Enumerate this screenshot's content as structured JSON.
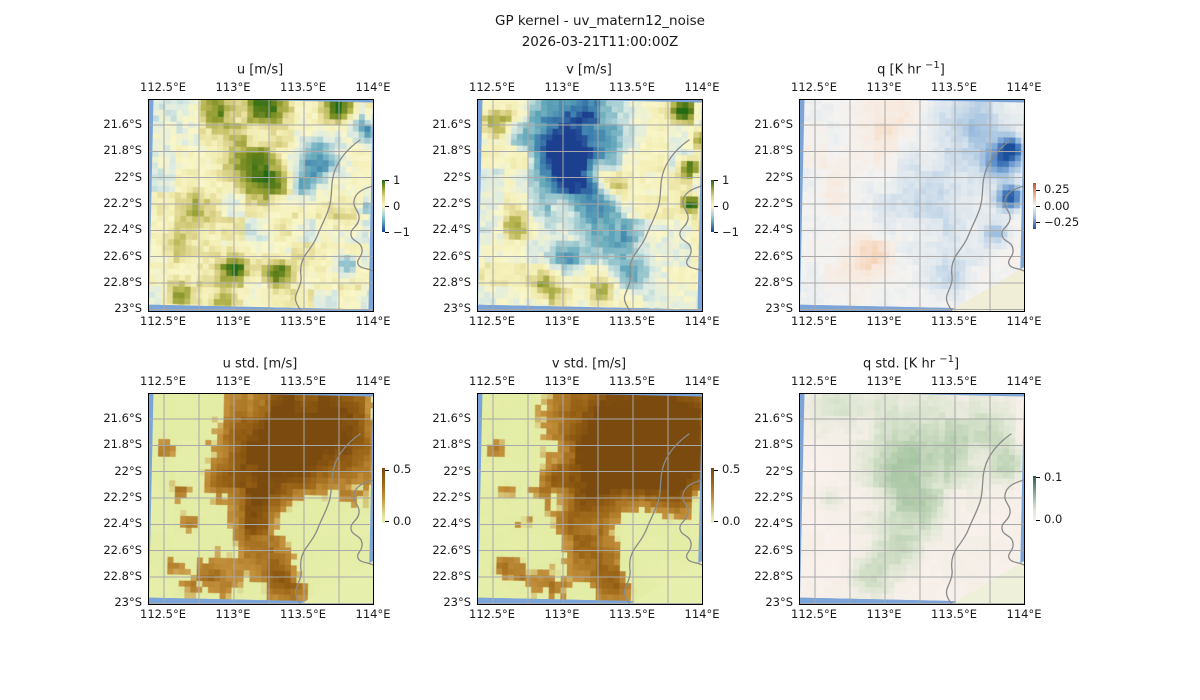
{
  "figure": {
    "title_line1": "GP kernel - uv_matern12_noise",
    "title_line2": "2026-03-21T11:00:00Z"
  },
  "colors": {
    "ocean": "#7ba4d9",
    "grid": "#a8a8a8",
    "coast": "#8a8a8a",
    "spine": "#000000",
    "text": "#1a1a1a"
  },
  "chart_data": {
    "type": "heatmap",
    "layout": "2 rows x 3 columns of lat-lon map panels, each with its own small vertical colorbar",
    "region": "Western Australia coast near Exmouth (North West Cape)",
    "lon_ticks": [
      "112.5°E",
      "113°E",
      "113.5°E",
      "114°E"
    ],
    "lat_ticks": [
      "21.6°S",
      "21.8°S",
      "22°S",
      "22.2°S",
      "22.4°S",
      "22.6°S",
      "22.8°S",
      "23°S"
    ],
    "lon_tick_values": [
      112.5,
      113.0,
      113.5,
      114.0
    ],
    "lat_tick_values": [
      -21.6,
      -21.8,
      -22.0,
      -22.2,
      -22.4,
      -22.6,
      -22.8,
      -23.0
    ],
    "grid": "on",
    "colormaps": {
      "uv": [
        [
          0.0,
          "#1c3f8f"
        ],
        [
          0.1,
          "#3d7fae"
        ],
        [
          0.22,
          "#63a8ba"
        ],
        [
          0.33,
          "#a8cfd4"
        ],
        [
          0.42,
          "#dcebe3"
        ],
        [
          0.5,
          "#f9f6c8"
        ],
        [
          0.58,
          "#f3eeb4"
        ],
        [
          0.66,
          "#ddd48b"
        ],
        [
          0.74,
          "#b8b754"
        ],
        [
          0.82,
          "#8f9a30"
        ],
        [
          0.9,
          "#5e7f1b"
        ],
        [
          1.0,
          "#1f6b14"
        ]
      ],
      "q": [
        [
          0.0,
          "#1a4f9c"
        ],
        [
          0.15,
          "#4f84c4"
        ],
        [
          0.3,
          "#9dbede"
        ],
        [
          0.42,
          "#dce6ee"
        ],
        [
          0.5,
          "#f4f3f1"
        ],
        [
          0.58,
          "#f8e9dd"
        ],
        [
          0.7,
          "#f4c9a6"
        ],
        [
          0.85,
          "#e0905c"
        ],
        [
          1.0,
          "#c2532c"
        ]
      ],
      "stduv": [
        [
          0.0,
          "#e7efac"
        ],
        [
          0.45,
          "#e3eca4"
        ],
        [
          0.49,
          "#c4913d"
        ],
        [
          0.6,
          "#b3802d"
        ],
        [
          0.72,
          "#a06a1b"
        ],
        [
          0.85,
          "#8f5a12"
        ],
        [
          1.0,
          "#7a4a0e"
        ]
      ],
      "stdq": [
        [
          0.0,
          "#fbf1ee"
        ],
        [
          0.25,
          "#f3eee6"
        ],
        [
          0.45,
          "#dde6d2"
        ],
        [
          0.65,
          "#bcd2b4"
        ],
        [
          0.85,
          "#9cbf9b"
        ],
        [
          1.0,
          "#7fa882"
        ]
      ]
    },
    "subplots": [
      {
        "name": "u",
        "title_pre": "u [m/s]",
        "title_sup": "",
        "title_post": "",
        "cmap": "uv",
        "cbar_ticks": [
          "1",
          "0",
          "−1"
        ],
        "cbar_tick_values": [
          1,
          0,
          -1
        ],
        "cbar_gradient": "linear-gradient(180deg,#1f6b14 0%,#8f9a30 15%,#ddd48b 32%,#f9f6c8 50%,#a8cfd4 68%,#63a8ba 80%,#1c3f8f 100%)",
        "field": {
          "seed": 3,
          "base": 0.02,
          "n1": 0.32,
          "n2": 0.18,
          "vmin": -1.7,
          "vmax": 1.7,
          "blobs": [
            [
              0.3,
              0.05,
              0.07,
              1.2
            ],
            [
              0.5,
              0.03,
              0.06,
              1.5
            ],
            [
              0.84,
              0.03,
              0.05,
              1.6
            ],
            [
              0.95,
              0.12,
              0.04,
              -1.0
            ],
            [
              0.44,
              0.3,
              0.09,
              1.1
            ],
            [
              0.55,
              0.4,
              0.07,
              0.9
            ],
            [
              0.74,
              0.29,
              0.07,
              -1.3
            ],
            [
              0.67,
              0.4,
              0.05,
              -1.0
            ],
            [
              0.22,
              0.52,
              0.06,
              0.7
            ],
            [
              0.12,
              0.7,
              0.05,
              0.6
            ],
            [
              0.38,
              0.79,
              0.05,
              1.5
            ],
            [
              0.57,
              0.81,
              0.05,
              1.4
            ],
            [
              0.14,
              0.93,
              0.05,
              1.3
            ],
            [
              0.33,
              0.95,
              0.05,
              0.9
            ],
            [
              0.88,
              0.77,
              0.04,
              -1.1
            ],
            [
              0.97,
              0.5,
              0.03,
              -1.0
            ],
            [
              0.6,
              0.6,
              0.05,
              0.6
            ],
            [
              0.85,
              0.55,
              0.04,
              0.5
            ]
          ]
        }
      },
      {
        "name": "v",
        "title_pre": "v [m/s]",
        "title_sup": "",
        "title_post": "",
        "cmap": "uv",
        "cbar_ticks": [
          "1",
          "0",
          "−1"
        ],
        "cbar_tick_values": [
          1,
          0,
          -1
        ],
        "cbar_gradient": "linear-gradient(180deg,#1f6b14 0%,#8f9a30 15%,#ddd48b 32%,#f9f6c8 50%,#a8cfd4 68%,#63a8ba 80%,#1c3f8f 100%)",
        "field": {
          "seed": 11,
          "base": 0.0,
          "n1": 0.3,
          "n2": 0.16,
          "vmin": -1.7,
          "vmax": 1.7,
          "blobs": [
            [
              0.45,
              0.08,
              0.15,
              -1.2
            ],
            [
              0.34,
              0.26,
              0.11,
              -1.4
            ],
            [
              0.47,
              0.38,
              0.1,
              -1.1
            ],
            [
              0.54,
              0.52,
              0.08,
              -0.9
            ],
            [
              0.6,
              0.66,
              0.07,
              -1.0
            ],
            [
              0.68,
              0.82,
              0.06,
              -0.9
            ],
            [
              0.4,
              0.76,
              0.06,
              -0.8
            ],
            [
              0.3,
              0.55,
              0.07,
              -0.5
            ],
            [
              0.07,
              0.13,
              0.05,
              1.2
            ],
            [
              0.9,
              0.04,
              0.04,
              1.5
            ],
            [
              0.52,
              0.33,
              0.04,
              1.1
            ],
            [
              0.6,
              0.4,
              0.05,
              1.2
            ],
            [
              0.17,
              0.6,
              0.05,
              0.8
            ],
            [
              0.3,
              0.89,
              0.05,
              1.0
            ],
            [
              0.56,
              0.91,
              0.04,
              1.3
            ],
            [
              0.93,
              0.31,
              0.03,
              1.9
            ],
            [
              0.94,
              0.48,
              0.025,
              1.7
            ],
            [
              0.98,
              0.18,
              0.03,
              1.1
            ],
            [
              0.2,
              0.3,
              0.04,
              0.7
            ]
          ]
        }
      },
      {
        "name": "q",
        "title_pre": "q [K hr ",
        "title_sup": "−1",
        "title_post": "]",
        "cmap": "q",
        "cbar_ticks": [
          "0.25",
          "0.00",
          "−0.25"
        ],
        "cbar_tick_values": [
          0.25,
          0.0,
          -0.25
        ],
        "cbar_gradient": "linear-gradient(180deg,#c2532c 0%,#e8b28e 25%,#f4f3f1 50%,#9dbede 75%,#1a4f9c 100%)",
        "field": {
          "seed": 5,
          "base": 0.0,
          "n1": 0.12,
          "n2": 0.06,
          "vmin": -1.7,
          "vmax": 1.7,
          "blobs": [
            [
              0.38,
              0.1,
              0.13,
              0.45
            ],
            [
              0.3,
              0.73,
              0.07,
              0.5
            ],
            [
              0.14,
              0.4,
              0.05,
              0.3
            ],
            [
              0.5,
              0.32,
              0.2,
              -0.25
            ],
            [
              0.76,
              0.1,
              0.12,
              -0.55
            ],
            [
              0.89,
              0.28,
              0.05,
              -1.3
            ],
            [
              0.93,
              0.45,
              0.04,
              -1.6
            ],
            [
              0.87,
              0.62,
              0.04,
              -0.8
            ],
            [
              0.93,
              0.22,
              0.035,
              -1.5
            ],
            [
              0.68,
              0.83,
              0.08,
              -0.35
            ],
            [
              0.25,
              0.32,
              0.08,
              0.22
            ],
            [
              0.6,
              0.55,
              0.1,
              -0.25
            ]
          ]
        }
      },
      {
        "name": "u_std",
        "title_pre": "u std. [m/s]",
        "title_sup": "",
        "title_post": "",
        "cmap": "stduv",
        "cbar_ticks": [
          "0.5",
          "0.0"
        ],
        "cbar_tick_values": [
          0.5,
          0.0
        ],
        "cbar_gradient": "linear-gradient(180deg,#7a4a0e 0%,#a06a1b 30%,#c4913d 55%,#e3eca4 90%,#e7efac 100%)",
        "field": {
          "seed": 8,
          "base": 0.22,
          "n1": 0.12,
          "n2": 0.06,
          "vmin": 0,
          "vmax": 1.1,
          "blobs": [
            [
              0.62,
              0.08,
              0.26,
              0.55
            ],
            [
              0.8,
              0.22,
              0.18,
              0.5
            ],
            [
              0.55,
              0.3,
              0.14,
              0.5
            ],
            [
              0.48,
              0.48,
              0.1,
              0.45
            ],
            [
              0.43,
              0.64,
              0.08,
              0.42
            ],
            [
              0.5,
              0.82,
              0.1,
              0.48
            ],
            [
              0.26,
              0.91,
              0.08,
              0.48
            ],
            [
              0.62,
              0.93,
              0.07,
              0.45
            ],
            [
              0.12,
              0.48,
              0.04,
              0.42
            ],
            [
              0.17,
              0.63,
              0.04,
              0.4
            ],
            [
              0.06,
              0.28,
              0.035,
              0.4
            ],
            [
              0.3,
              0.42,
              0.05,
              0.35
            ],
            [
              0.1,
              0.84,
              0.04,
              0.4
            ]
          ]
        }
      },
      {
        "name": "v_std",
        "title_pre": "v std. [m/s]",
        "title_sup": "",
        "title_post": "",
        "cmap": "stduv",
        "cbar_ticks": [
          "0.5",
          "0.0"
        ],
        "cbar_tick_values": [
          0.5,
          0.0
        ],
        "cbar_gradient": "linear-gradient(180deg,#7a4a0e 0%,#a06a1b 30%,#c4913d 55%,#e3eca4 90%,#e7efac 100%)",
        "field": {
          "seed": 9,
          "base": 0.22,
          "n1": 0.12,
          "n2": 0.06,
          "vmin": 0,
          "vmax": 1.1,
          "blobs": [
            [
              0.62,
              0.08,
              0.26,
              0.55
            ],
            [
              0.8,
              0.22,
              0.18,
              0.5
            ],
            [
              0.55,
              0.3,
              0.14,
              0.5
            ],
            [
              0.48,
              0.48,
              0.1,
              0.45
            ],
            [
              0.43,
              0.64,
              0.08,
              0.42
            ],
            [
              0.5,
              0.82,
              0.1,
              0.48
            ],
            [
              0.26,
              0.91,
              0.08,
              0.48
            ],
            [
              0.62,
              0.93,
              0.07,
              0.45
            ],
            [
              0.12,
              0.48,
              0.04,
              0.42
            ],
            [
              0.17,
              0.63,
              0.04,
              0.4
            ],
            [
              0.06,
              0.28,
              0.035,
              0.4
            ],
            [
              0.3,
              0.42,
              0.05,
              0.35
            ],
            [
              0.1,
              0.84,
              0.04,
              0.4
            ],
            [
              0.9,
              0.1,
              0.12,
              0.5
            ],
            [
              0.93,
              0.33,
              0.09,
              0.45
            ],
            [
              0.88,
              0.5,
              0.06,
              0.35
            ],
            [
              0.75,
              0.4,
              0.08,
              0.35
            ]
          ]
        }
      },
      {
        "name": "q_std",
        "title_pre": "q std. [K hr ",
        "title_sup": "−1",
        "title_post": "]",
        "cmap": "stdq",
        "cbar_ticks": [
          "0.1",
          "0.0"
        ],
        "cbar_tick_values": [
          0.1,
          0.0
        ],
        "cbar_gradient": "linear-gradient(180deg,#2e5e4e 0%,#8fae93 40%,#dfe6d8 75%,#fbf1ee 100%)",
        "field": {
          "seed": 13,
          "base": 0.1,
          "n1": 0.07,
          "n2": 0.035,
          "vmin": 0,
          "vmax": 0.8,
          "blobs": [
            [
              0.55,
              0.12,
              0.2,
              0.3
            ],
            [
              0.44,
              0.38,
              0.12,
              0.32
            ],
            [
              0.5,
              0.58,
              0.1,
              0.34
            ],
            [
              0.4,
              0.78,
              0.09,
              0.3
            ],
            [
              0.3,
              0.9,
              0.07,
              0.28
            ],
            [
              0.15,
              0.08,
              0.1,
              0.22
            ],
            [
              0.92,
              0.33,
              0.06,
              0.35
            ],
            [
              0.85,
              0.18,
              0.08,
              0.25
            ],
            [
              0.12,
              0.52,
              0.04,
              0.2
            ],
            [
              0.65,
              0.3,
              0.1,
              0.2
            ]
          ]
        }
      }
    ]
  }
}
